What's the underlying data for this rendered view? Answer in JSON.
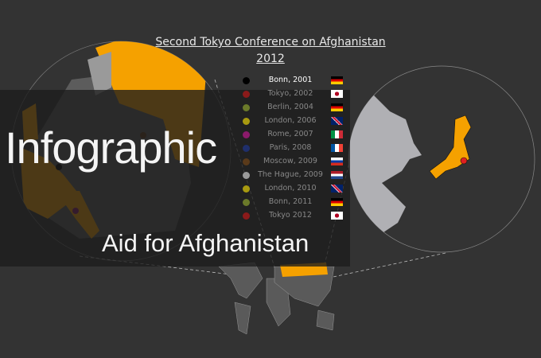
{
  "title": {
    "line1": "Second Tokyo Conference on Afghanistan",
    "line2": "2012"
  },
  "legend": [
    {
      "label": "Bonn, 2001",
      "dot": "#000000",
      "flag": "germany"
    },
    {
      "label": "Tokyo, 2002",
      "dot": "#8b1a1a",
      "flag": "japan"
    },
    {
      "label": "Berlin, 2004",
      "dot": "#6b7a2a",
      "flag": "germany"
    },
    {
      "label": "London, 2006",
      "dot": "#a89a10",
      "flag": "uk"
    },
    {
      "label": "Rome, 2007",
      "dot": "#8b1a6b",
      "flag": "italy"
    },
    {
      "label": "Paris, 2008",
      "dot": "#1f2f6b",
      "flag": "france"
    },
    {
      "label": "Moscow, 2009",
      "dot": "#5a3a1a",
      "flag": "russia"
    },
    {
      "label": "The Hague, 2009",
      "dot": "#9a9a9a",
      "flag": "netherlands"
    },
    {
      "label": "London, 2010",
      "dot": "#a89a10",
      "flag": "uk"
    },
    {
      "label": "Bonn, 2011",
      "dot": "#6b7a2a",
      "flag": "germany"
    },
    {
      "label": "Tokyo 2012",
      "dot": "#8b1a1a",
      "flag": "japan"
    }
  ],
  "overlay": {
    "heading": "Infographic",
    "subheading": "Aid for Afghanistan"
  },
  "colors": {
    "background": "#333333",
    "highlight": "#f5a100",
    "land": "#5a5a5a",
    "land_light": "#b0b0b4",
    "marker": "#e02020"
  }
}
